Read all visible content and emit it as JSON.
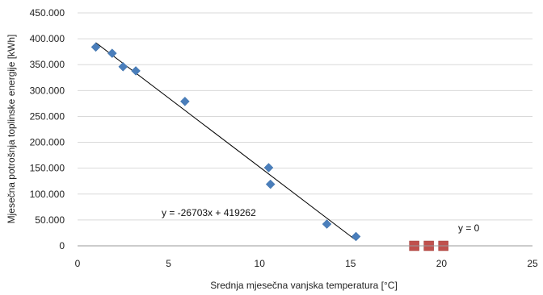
{
  "chart_data": {
    "type": "scatter",
    "xlabel": "Srednja mjesečna vanjska temperatura [°C]",
    "ylabel": "Mjesečna potrošnja toplinske energije [kWh]",
    "xlim": [
      0,
      25
    ],
    "ylim": [
      0,
      450000
    ],
    "x_ticks": [
      0,
      5,
      10,
      15,
      20,
      25
    ],
    "y_ticks": [
      0,
      50000,
      100000,
      150000,
      200000,
      250000,
      300000,
      350000,
      400000,
      450000
    ],
    "x_tick_labels": [
      "0",
      "5",
      "10",
      "15",
      "20",
      "25"
    ],
    "y_tick_labels": [
      "0",
      "50.000",
      "100.000",
      "150.000",
      "200.000",
      "250.000",
      "300.000",
      "350.000",
      "400.000",
      "450.000"
    ],
    "grid": "horizontal",
    "legend": "none",
    "series": [
      {
        "marker": "diamond",
        "color": "#4a7ebb",
        "points": [
          {
            "x": 1.0,
            "y": 384000
          },
          {
            "x": 1.9,
            "y": 372000
          },
          {
            "x": 2.5,
            "y": 346000
          },
          {
            "x": 3.2,
            "y": 338000
          },
          {
            "x": 5.9,
            "y": 279000
          },
          {
            "x": 10.5,
            "y": 151000
          },
          {
            "x": 10.6,
            "y": 119000
          },
          {
            "x": 13.7,
            "y": 42000
          },
          {
            "x": 15.3,
            "y": 18000
          }
        ],
        "trendline": {
          "slope": -26703,
          "intercept": 419262,
          "x_range": [
            1.0,
            15.3
          ],
          "color": "#000000"
        }
      },
      {
        "marker": "square",
        "color": "#c0504d",
        "points": [
          {
            "x": 18.5,
            "y": 0
          },
          {
            "x": 19.3,
            "y": 0
          },
          {
            "x": 20.1,
            "y": 0
          }
        ],
        "trendline": {
          "slope": 0,
          "intercept": 0,
          "x_range": [
            18.5,
            20.1
          ],
          "color": "#000000"
        }
      }
    ],
    "annotations": [
      {
        "text": "y = -26703x + 419262"
      },
      {
        "text": "y = 0"
      }
    ]
  }
}
